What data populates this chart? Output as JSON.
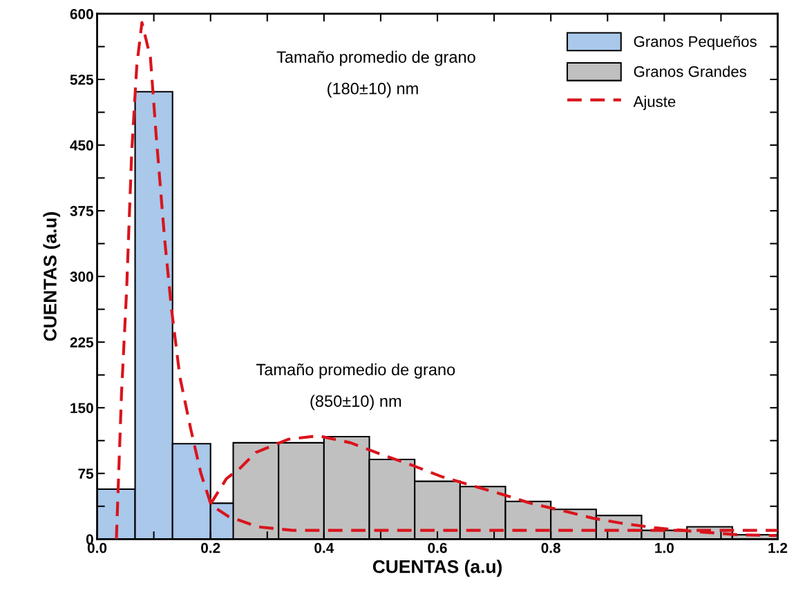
{
  "chart_data": {
    "type": "histogram",
    "xlabel": "CUENTAS (a.u)",
    "ylabel": "CUENTAS (a.u)",
    "xlim": [
      0,
      1.2
    ],
    "ylim": [
      0,
      600
    ],
    "xticks": [
      {
        "value": 0,
        "label": "0.0"
      },
      {
        "value": 0.1,
        "label": null
      },
      {
        "value": 0.2,
        "label": "0.2"
      },
      {
        "value": 0.3,
        "label": null
      },
      {
        "value": 0.4,
        "label": "0.4"
      },
      {
        "value": 0.5,
        "label": null
      },
      {
        "value": 0.6,
        "label": "0.6"
      },
      {
        "value": 0.7,
        "label": null
      },
      {
        "value": 0.8,
        "label": "0.8"
      },
      {
        "value": 0.9,
        "label": null
      },
      {
        "value": 1.0,
        "label": "1.0"
      },
      {
        "value": 1.1,
        "label": null
      },
      {
        "value": 1.2,
        "label": "1.2"
      }
    ],
    "yticks": [
      0,
      {
        "value": 37.5,
        "label": null
      },
      75,
      {
        "value": 112.5,
        "label": null
      },
      150,
      {
        "value": 187.5,
        "label": null
      },
      225,
      {
        "value": 262.5,
        "label": null
      },
      300,
      {
        "value": 337.5,
        "label": null
      },
      375,
      {
        "value": 412.5,
        "label": null
      },
      450,
      {
        "value": 487.5,
        "label": null
      },
      525,
      {
        "value": 562.5,
        "label": null
      },
      600
    ],
    "legend": "top right",
    "grid": false,
    "annotations": [
      "Tamaño promedio de grano",
      "(180±10) nm",
      "Tamaño promedio de grano",
      "(850±10) nm"
    ],
    "series": [
      {
        "name": "Granos Pequeños",
        "color": "#a9c8ea",
        "bins": [
          0,
          0.067,
          0.133,
          0.2,
          0.267
        ],
        "values": [
          57,
          511,
          109,
          41
        ]
      },
      {
        "name": "Granos Grandes",
        "color": "#c0c0c0",
        "bins": [
          0.24,
          0.32,
          0.4,
          0.48,
          0.56,
          0.64,
          0.72,
          0.8,
          0.88,
          0.96,
          1.04,
          1.12,
          1.2
        ],
        "values": [
          110,
          110,
          117,
          91,
          66,
          60,
          43,
          34,
          27,
          10,
          14,
          5
        ]
      },
      {
        "name": "Ajuste",
        "type": "line",
        "line_style": "dashed",
        "color": "#d9141c",
        "x": [
          0.034,
          0.043,
          0.052,
          0.061,
          0.07,
          0.079,
          0.094,
          0.104,
          0.119,
          0.131,
          0.146,
          0.165,
          0.183,
          0.201,
          0.231,
          0.284,
          0.345,
          0.5,
          0.8,
          1.2
        ],
        "values": [
          0,
          166,
          284,
          442,
          541,
          590,
          550,
          462,
          343,
          264,
          185,
          126,
          75,
          39,
          26,
          14,
          10,
          10,
          10,
          10
        ]
      },
      {
        "type": "line",
        "line_style": "dashed",
        "color": "#d9141c",
        "x": [
          0.2,
          0.228,
          0.252,
          0.28,
          0.337,
          0.39,
          0.447,
          0.5,
          0.557,
          0.609,
          0.662,
          0.71,
          0.764,
          0.824,
          0.873,
          0.926,
          0.983,
          1.048,
          1.129,
          1.198
        ],
        "values": [
          40,
          69,
          81,
          99,
          114,
          118,
          110,
          97,
          84,
          71,
          61,
          52,
          41,
          32,
          24,
          18,
          13,
          9,
          5,
          4
        ]
      }
    ]
  }
}
